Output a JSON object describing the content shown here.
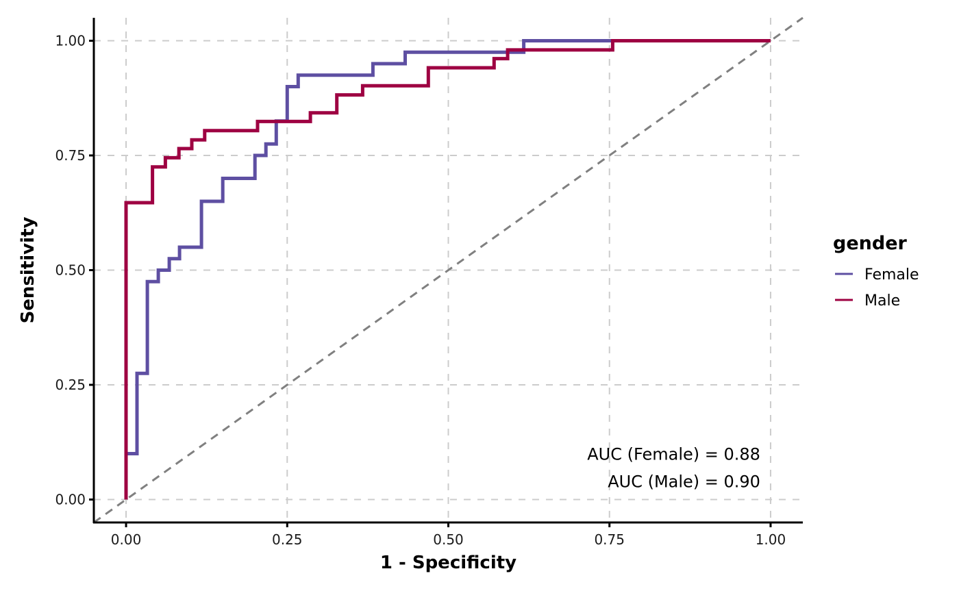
{
  "chart_data": {
    "type": "line",
    "subtype": "roc-step",
    "title": "",
    "xlabel": "1 - Specificity",
    "ylabel": "Sensitivity",
    "xlim": [
      -0.05,
      1.05
    ],
    "ylim": [
      -0.05,
      1.05
    ],
    "xticks": [
      0,
      0.25,
      0.5,
      0.75,
      1.0
    ],
    "yticks": [
      0,
      0.25,
      0.5,
      0.75,
      1.0
    ],
    "xtick_labels": [
      "0.00",
      "0.25",
      "0.50",
      "0.75",
      "1.00"
    ],
    "ytick_labels": [
      "0.00",
      "0.25",
      "0.50",
      "0.75",
      "1.00"
    ],
    "grid": true,
    "grid_style": "dashed",
    "reference_line": {
      "type": "diagonal",
      "slope": 1,
      "intercept": 0,
      "style": "dashed",
      "color": "#808080"
    },
    "legend": {
      "title": "gender",
      "position": "right",
      "entries": [
        {
          "name": "Female",
          "color": "#5E4FA2"
        },
        {
          "name": "Male",
          "color": "#9E0142"
        }
      ]
    },
    "series": [
      {
        "name": "Female",
        "color": "#5E4FA2",
        "x": [
          0,
          0,
          0.017,
          0.017,
          0.033,
          0.033,
          0.05,
          0.05,
          0.067,
          0.067,
          0.083,
          0.083,
          0.117,
          0.117,
          0.15,
          0.15,
          0.2,
          0.2,
          0.217,
          0.217,
          0.233,
          0.233,
          0.25,
          0.25,
          0.267,
          0.267,
          0.383,
          0.383,
          0.433,
          0.433,
          0.617,
          0.617,
          1.0
        ],
        "y": [
          0,
          0.1,
          0.1,
          0.275,
          0.275,
          0.475,
          0.475,
          0.5,
          0.5,
          0.525,
          0.525,
          0.55,
          0.55,
          0.65,
          0.65,
          0.7,
          0.7,
          0.75,
          0.75,
          0.775,
          0.775,
          0.825,
          0.825,
          0.9,
          0.9,
          0.925,
          0.925,
          0.95,
          0.95,
          0.975,
          0.975,
          1.0,
          1.0
        ]
      },
      {
        "name": "Male",
        "color": "#9E0142",
        "x": [
          0,
          0,
          0.041,
          0.041,
          0.061,
          0.061,
          0.082,
          0.082,
          0.102,
          0.102,
          0.122,
          0.122,
          0.204,
          0.204,
          0.286,
          0.286,
          0.327,
          0.327,
          0.367,
          0.367,
          0.469,
          0.469,
          0.571,
          0.571,
          0.592,
          0.592,
          0.755,
          0.755,
          1.0
        ],
        "y": [
          0,
          0.647,
          0.647,
          0.725,
          0.725,
          0.745,
          0.745,
          0.765,
          0.765,
          0.784,
          0.784,
          0.804,
          0.804,
          0.824,
          0.824,
          0.843,
          0.843,
          0.882,
          0.882,
          0.902,
          0.902,
          0.941,
          0.941,
          0.961,
          0.961,
          0.98,
          0.98,
          1.0,
          1.0
        ]
      }
    ],
    "annotations": [
      {
        "text": "AUC (Female) = 0.88",
        "x": 1.0,
        "y": 0.1,
        "align": "right"
      },
      {
        "text": "AUC (Male) = 0.90",
        "x": 1.0,
        "y": 0.04,
        "align": "right"
      }
    ],
    "auc": {
      "Female": 0.88,
      "Male": 0.9
    }
  }
}
